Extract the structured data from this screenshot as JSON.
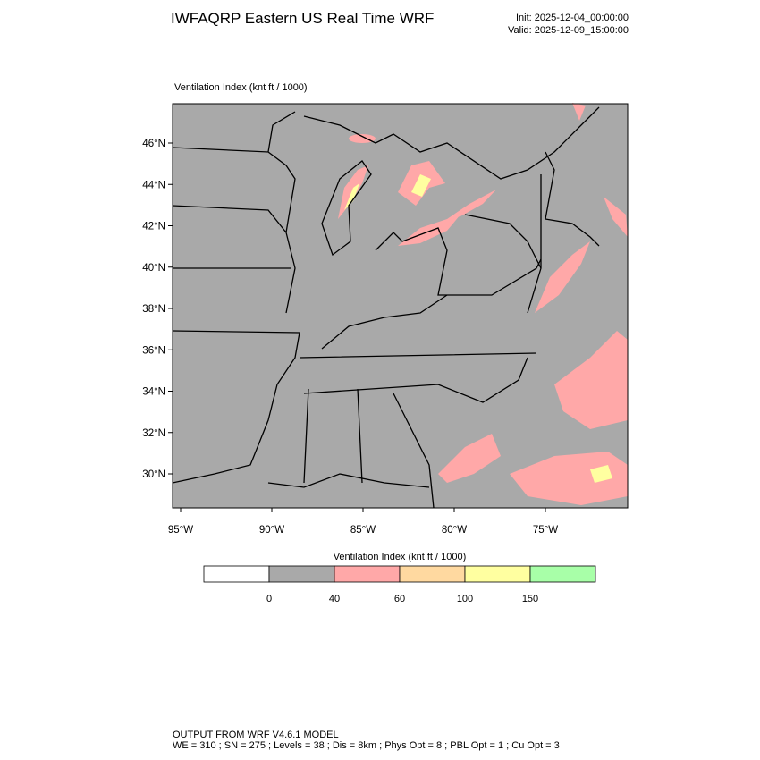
{
  "header": {
    "title": "IWFAQRP Eastern US Real Time WRF",
    "init": "Init: 2025-12-04_00:00:00",
    "valid": "Valid: 2025-12-09_15:00:00"
  },
  "map": {
    "subtitle": "Ventilation Index   (knt ft / 1000)",
    "lat_labels": [
      "46°N",
      "44°N",
      "42°N",
      "40°N",
      "38°N",
      "36°N",
      "34°N",
      "32°N",
      "30°N"
    ],
    "lon_labels": [
      "95°W",
      "90°W",
      "85°W",
      "80°W",
      "75°W"
    ]
  },
  "colorbar": {
    "title": "Ventilation Index  (knt ft / 1000)",
    "labels": [
      0,
      40,
      60,
      100,
      150
    ],
    "colors": [
      "#ffffff",
      "#a9a9a9",
      "#ffa8a8",
      "#ffd9a0",
      "#ffffa0",
      "#a8ffa8"
    ]
  },
  "footer": {
    "line1": "OUTPUT FROM WRF V4.6.1 MODEL",
    "line2": "WE = 310 ; SN = 275 ; Levels = 38 ; Dis = 8km ; Phys Opt = 8 ; PBL Opt = 1 ; Cu Opt = 3"
  }
}
